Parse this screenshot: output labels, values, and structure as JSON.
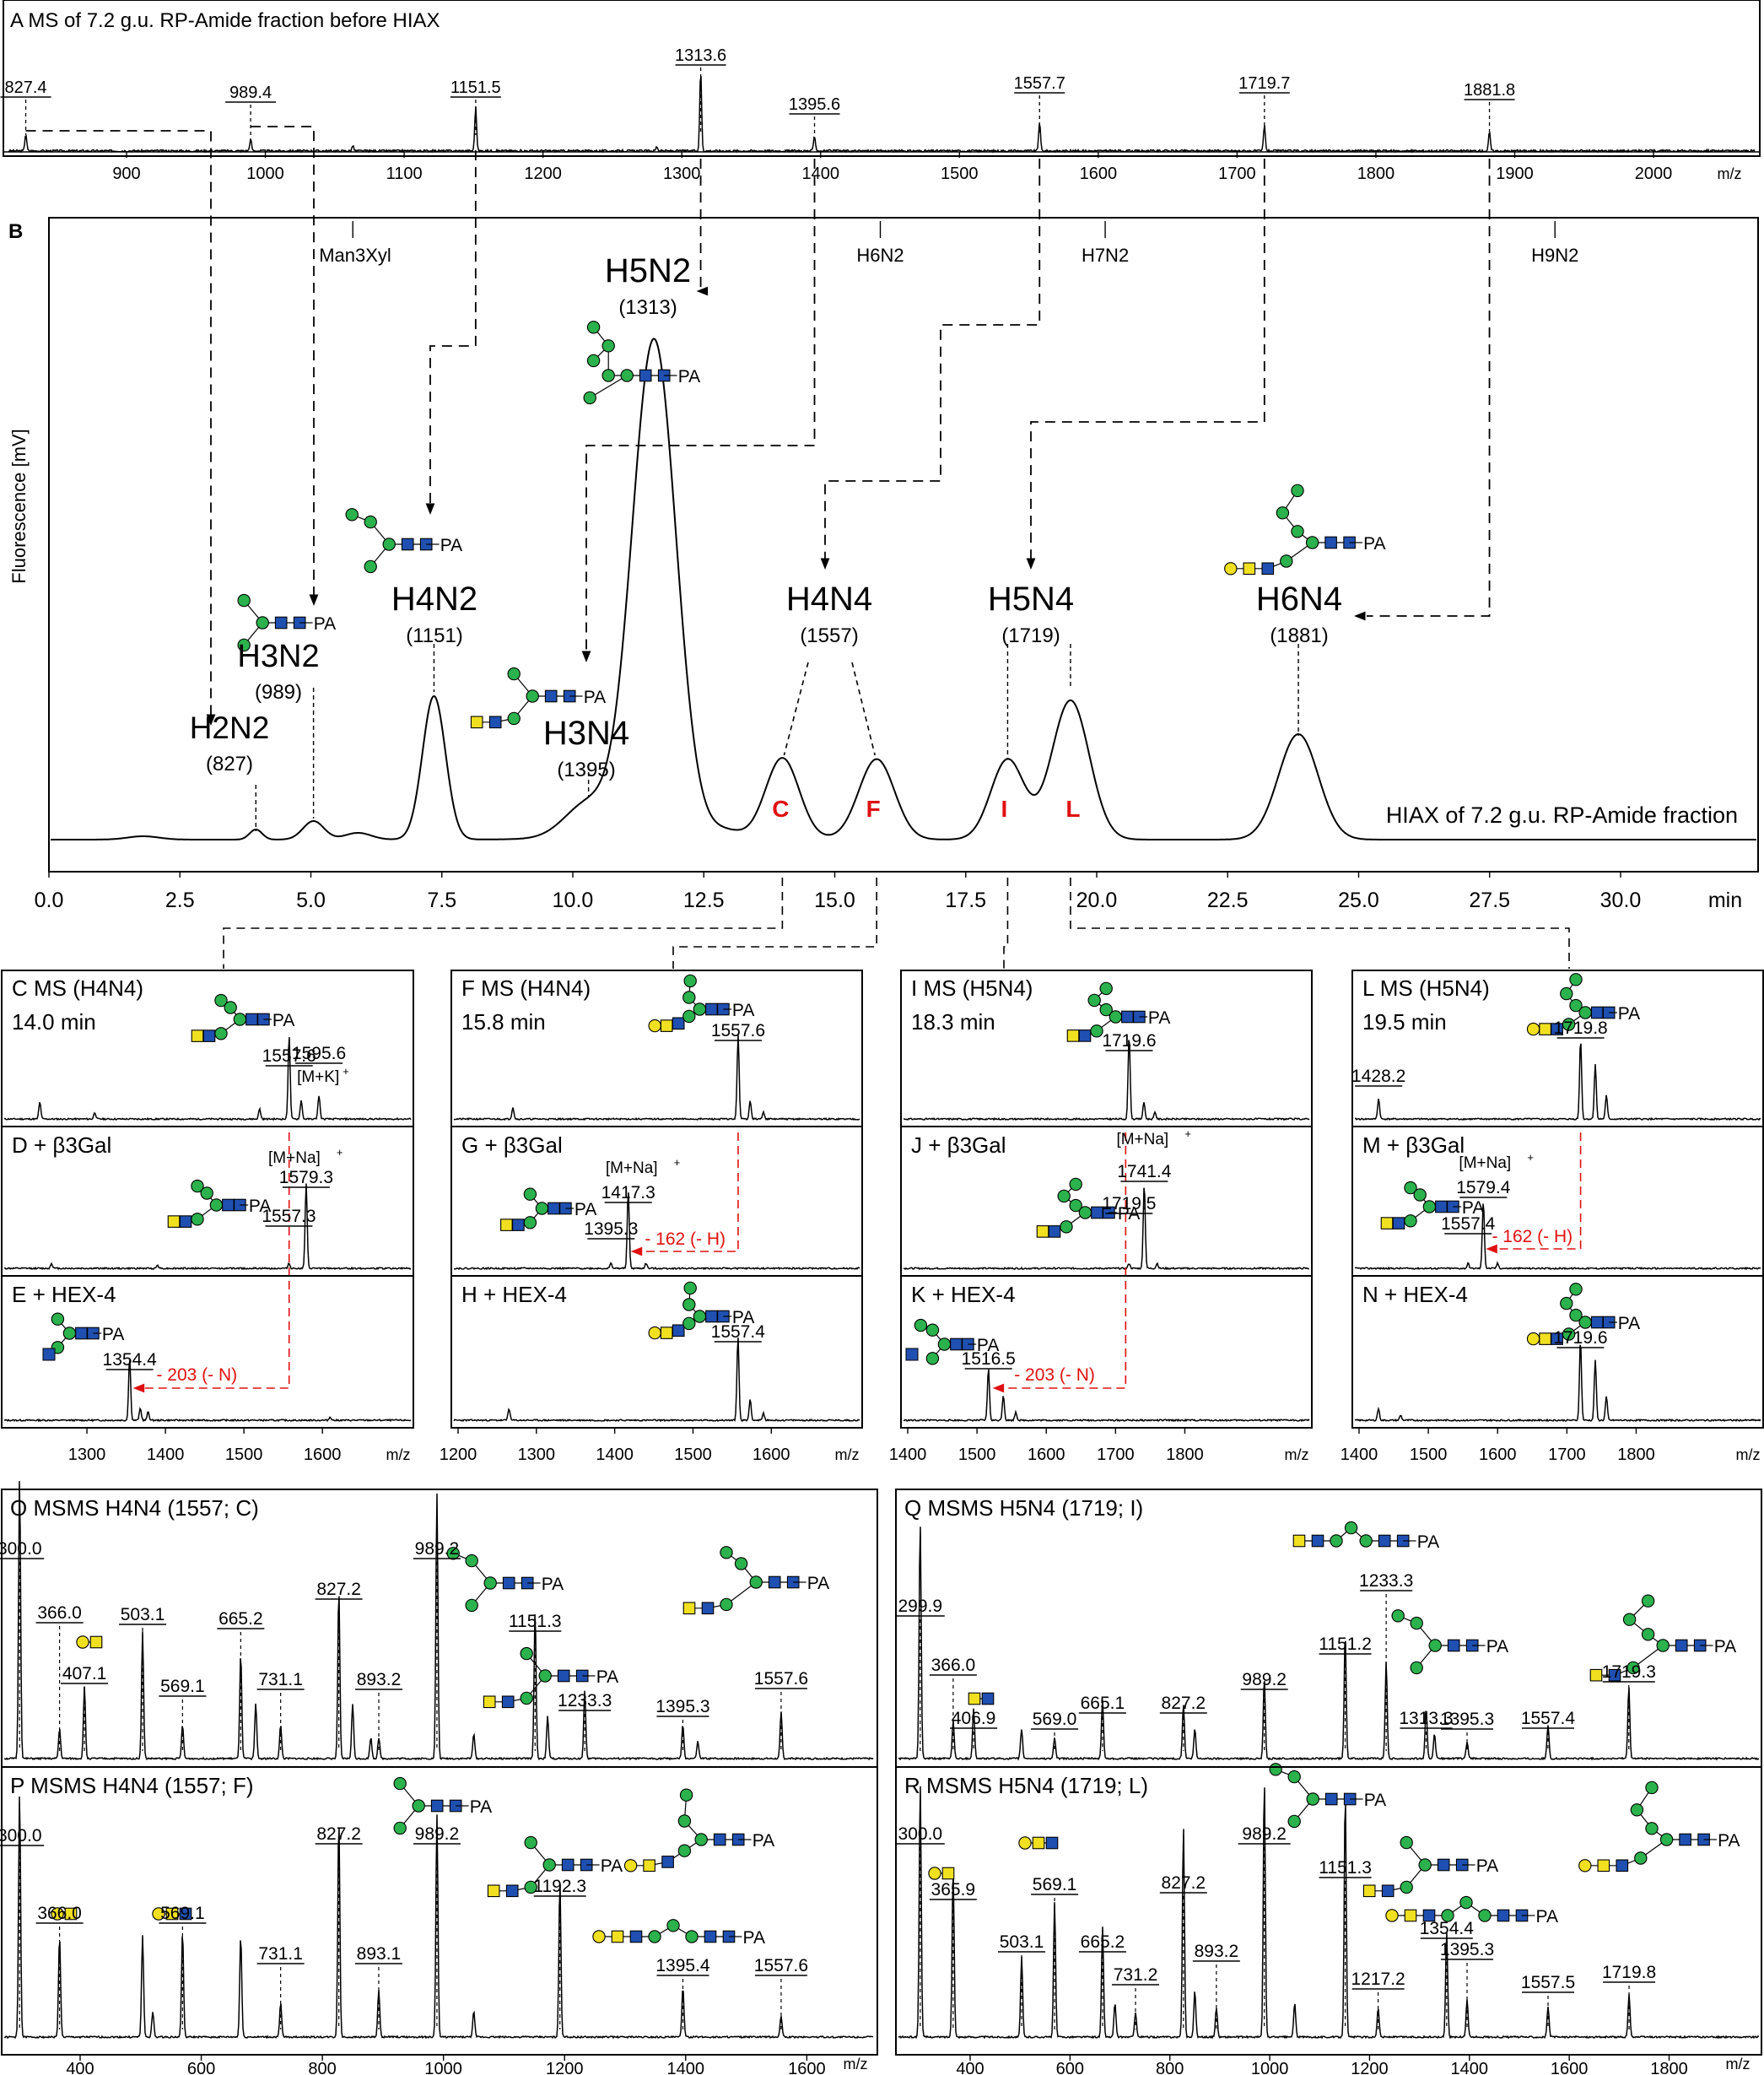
{
  "colors": {
    "glc_man_green": "#2bb24c",
    "glcnac_blue": "#1f4fb0",
    "gal_yellow": "#f0e020",
    "annotation_red": "#e01010",
    "trace": "#000000"
  },
  "panelA": {
    "title": "A  MS of 7.2 g.u. RP-Amide fraction before HIAX",
    "axis_unit": "m/z",
    "ticks": [
      "900",
      "1000",
      "1100",
      "1200",
      "1300",
      "1400",
      "1500",
      "1600",
      "1700",
      "1800",
      "1900",
      "2000"
    ],
    "peaks": [
      "827.4",
      "989.4",
      "1151.5",
      "1313.6",
      "1395.6",
      "1557.7",
      "1719.7",
      "1881.8"
    ]
  },
  "panelB": {
    "letter": "B",
    "ylabel": "Fluorescence [mV]",
    "caption": "HIAX of 7.2 g.u. RP-Amide fraction",
    "axis_unit": "min",
    "ticks": [
      "0.0",
      "2.5",
      "5.0",
      "7.5",
      "10.0",
      "12.5",
      "15.0",
      "17.5",
      "20.0",
      "22.5",
      "25.0",
      "27.5",
      "30.0"
    ],
    "mass_marks": [
      "Man3Xyl",
      "H6N2",
      "H7N2",
      "H9N2"
    ],
    "glycans": [
      {
        "name": "H2N2",
        "mass": "(827)"
      },
      {
        "name": "H3N2",
        "mass": "(989)"
      },
      {
        "name": "H4N2",
        "mass": "(1151)"
      },
      {
        "name": "H3N4",
        "mass": "(1395)"
      },
      {
        "name": "H5N2",
        "mass": "(1313)"
      },
      {
        "name": "H4N4",
        "mass": "(1557)"
      },
      {
        "name": "H5N4",
        "mass": "(1719)"
      },
      {
        "name": "H6N4",
        "mass": "(1881)"
      }
    ],
    "isomer_labels": [
      "C",
      "F",
      "I",
      "L"
    ]
  },
  "panelsCN": {
    "columns": [
      {
        "title": "C MS (H4N4)",
        "time": "14.0 min",
        "ticks": [
          "1300",
          "1400",
          "1500",
          "1600"
        ],
        "unit": "m/z",
        "labels": {
          "main": "1557.6",
          "k": "1595.6",
          "kion": "[M+K]",
          "d_na": "[M+Na]",
          "d_peak": "1579.3",
          "d_sub": "1557.3",
          "e_peak": "1354.4",
          "e_loss": "- 203 (- N)"
        }
      },
      {
        "title": "F MS (H4N4)",
        "time": "15.8 min",
        "ticks": [
          "1200",
          "1300",
          "1400",
          "1500",
          "1600"
        ],
        "unit": "m/z",
        "labels": {
          "main": "1557.6",
          "g_na": "[M+Na]",
          "g_peak": "1417.3",
          "g_sub": "1395.3",
          "g_loss": "- 162 (- H)",
          "h_peak": "1557.4"
        }
      },
      {
        "title": "I MS (H5N4)",
        "time": "18.3 min",
        "ticks": [
          "1400",
          "1500",
          "1600",
          "1700",
          "1800"
        ],
        "unit": "m/z",
        "labels": {
          "main": "1719.6",
          "j_na": "[M+Na]",
          "j_peak": "1741.4",
          "j_sub": "1719.5",
          "k_peak": "1516.5",
          "k_loss": "- 203 (- N)"
        }
      },
      {
        "title": "L MS (H5N4)",
        "time": "19.5 min",
        "ticks": [
          "1400",
          "1500",
          "1600",
          "1700",
          "1800"
        ],
        "unit": "m/z",
        "labels": {
          "main": "1719.8",
          "extra": "1428.2",
          "m_na": "[M+Na]",
          "m_peak": "1579.4",
          "m_sub": "1557.4",
          "m_loss": "- 162 (- H)",
          "n_peak": "1719.6"
        }
      }
    ],
    "row_labels": [
      [
        "D + β3Gal",
        "E + HEX-4"
      ],
      [
        "G + β3Gal",
        "H + HEX-4"
      ],
      [
        "J + β3Gal",
        "K + HEX-4"
      ],
      [
        "M + β3Gal",
        "N + HEX-4"
      ]
    ],
    "plus_sign": "+"
  },
  "panelsOR": {
    "O": {
      "title": "O MSMS H4N4 (1557; C)",
      "labels": [
        "300.0",
        "366.0",
        "407.1",
        "503.1",
        "569.1",
        "665.2",
        "731.1",
        "827.2",
        "893.2",
        "989.2",
        "1151.3",
        "1233.3",
        "1395.3",
        "1557.6"
      ]
    },
    "P": {
      "title": "P MSMS H4N4 (1557; F)",
      "labels": [
        "300.0",
        "366.0",
        "569.1",
        "731.1",
        "827.2",
        "893.1",
        "989.2",
        "1192.3",
        "1395.4",
        "1557.6"
      ]
    },
    "OP_ticks": [
      "400",
      "600",
      "800",
      "1000",
      "1200",
      "1400",
      "1600"
    ],
    "Q": {
      "title": "Q MSMS H5N4 (1719; I)",
      "labels": [
        "299.9",
        "366.0",
        "406.9",
        "569.0",
        "665.1",
        "827.2",
        "989.2",
        "1151.2",
        "1233.3",
        "1313.3",
        "1395.3",
        "1557.4",
        "1719.3"
      ]
    },
    "R": {
      "title": "R MSMS H5N4 (1719; L)",
      "labels": [
        "300.0",
        "365.9",
        "503.1",
        "569.1",
        "665.2",
        "731.2",
        "827.2",
        "893.2",
        "989.2",
        "1151.3",
        "1217.2",
        "1354.4",
        "1395.3",
        "1557.5",
        "1719.8"
      ]
    },
    "QR_ticks": [
      "400",
      "600",
      "800",
      "1000",
      "1200",
      "1400",
      "1600",
      "1800"
    ],
    "unit": "m/z",
    "glycan_suffix": "PA"
  }
}
